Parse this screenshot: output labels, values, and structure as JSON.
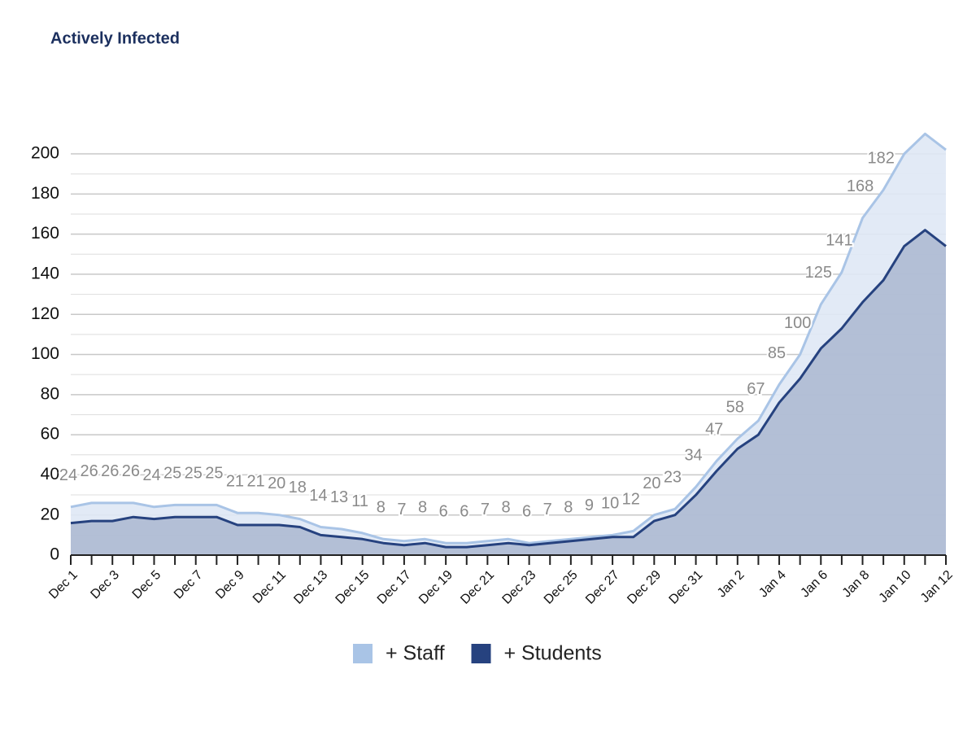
{
  "chart_data": {
    "type": "area",
    "title": "Actively Infected",
    "categories": [
      "Dec 1",
      null,
      "Dec 3",
      null,
      "Dec 5",
      null,
      "Dec 7",
      null,
      "Dec 9",
      null,
      "Dec 11",
      null,
      "Dec 13",
      null,
      "Dec 15",
      null,
      "Dec 17",
      null,
      "Dec 19",
      null,
      "Dec 21",
      null,
      "Dec 23",
      null,
      "Dec 25",
      null,
      "Dec 27",
      null,
      "Dec 29",
      null,
      "Dec 31",
      null,
      "Jan 2",
      null,
      "Jan 4",
      null,
      "Jan 6",
      null,
      "Jan 8",
      null,
      "Jan 10",
      null,
      "Jan 12"
    ],
    "series": [
      {
        "name": "+ Staff",
        "color": "#a9c4e6",
        "fill": "#dfe8f5",
        "values": [
          24,
          26,
          26,
          26,
          24,
          25,
          25,
          25,
          21,
          21,
          20,
          18,
          14,
          13,
          11,
          8,
          7,
          8,
          6,
          6,
          7,
          8,
          6,
          7,
          8,
          9,
          10,
          12,
          20,
          23,
          34,
          47,
          58,
          67,
          85,
          100,
          125,
          141,
          168,
          182,
          200,
          210,
          202
        ],
        "value_labels": [
          "24",
          "26",
          "26",
          "26",
          "24",
          "25",
          "25",
          "25",
          "21",
          "21",
          "20",
          "18",
          "14",
          "13",
          "11",
          "8",
          "7",
          "8",
          "6",
          "6",
          "7",
          "8",
          "6",
          "7",
          "8",
          "9",
          "10",
          "12",
          "20",
          "23",
          "34",
          "47",
          "58",
          "67",
          "85",
          "100",
          "125",
          "141",
          "168",
          "182",
          null,
          null,
          null
        ]
      },
      {
        "name": "+ Students",
        "color": "#26427f",
        "fill": "#a3b0cb",
        "values": [
          16,
          17,
          17,
          19,
          18,
          19,
          19,
          19,
          15,
          15,
          15,
          14,
          10,
          9,
          8,
          6,
          5,
          6,
          4,
          4,
          5,
          6,
          5,
          6,
          7,
          8,
          9,
          9,
          17,
          20,
          30,
          42,
          53,
          60,
          76,
          88,
          103,
          113,
          126,
          137,
          154,
          162,
          154
        ]
      }
    ],
    "ylim": [
      0,
      210
    ],
    "yticks": [
      0,
      20,
      40,
      60,
      80,
      100,
      120,
      140,
      160,
      180,
      200
    ],
    "grid": true,
    "legend": "bottom"
  }
}
